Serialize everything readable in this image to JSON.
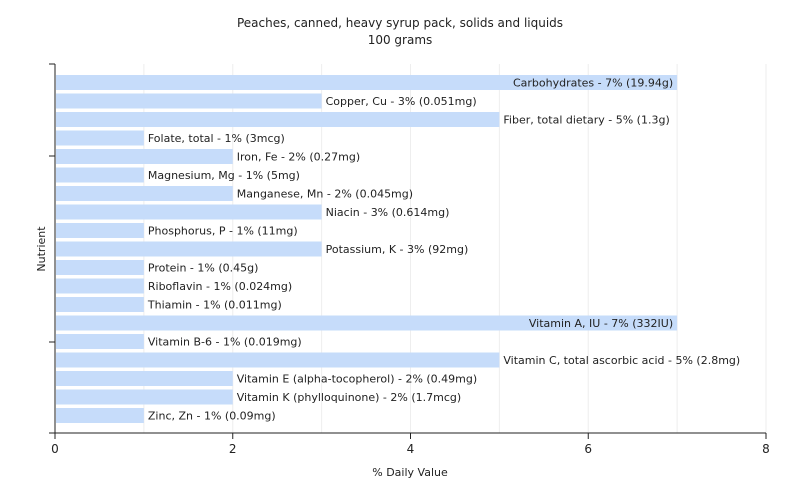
{
  "chart_data": {
    "type": "bar",
    "orientation": "horizontal",
    "title": "Peaches, canned, heavy syrup pack, solids and liquids",
    "subtitle": "100 grams",
    "xlabel": "% Daily Value",
    "ylabel": "Nutrient",
    "xlim": [
      0,
      8
    ],
    "xticks": [
      "0",
      "2",
      "4",
      "6",
      "8"
    ],
    "grid": true,
    "bar_color": "#c6dcfa",
    "categories": [
      "Carbohydrates",
      "Copper, Cu",
      "Fiber, total dietary",
      "Folate, total",
      "Iron, Fe",
      "Magnesium, Mg",
      "Manganese, Mn",
      "Niacin",
      "Phosphorus, P",
      "Potassium, K",
      "Protein",
      "Riboflavin",
      "Thiamin",
      "Vitamin A, IU",
      "Vitamin B-6",
      "Vitamin C, total ascorbic acid",
      "Vitamin E (alpha-tocopherol)",
      "Vitamin K (phylloquinone)",
      "Zinc, Zn"
    ],
    "values": [
      7,
      3,
      5,
      1,
      2,
      1,
      2,
      3,
      1,
      3,
      1,
      1,
      1,
      7,
      1,
      5,
      2,
      2,
      1
    ],
    "labels": [
      "Carbohydrates - 7% (19.94g)",
      "Copper, Cu - 3% (0.051mg)",
      "Fiber, total dietary - 5% (1.3g)",
      "Folate, total - 1% (3mcg)",
      "Iron, Fe - 2% (0.27mg)",
      "Magnesium, Mg - 1% (5mg)",
      "Manganese, Mn - 2% (0.045mg)",
      "Niacin - 3% (0.614mg)",
      "Phosphorus, P - 1% (11mg)",
      "Potassium, K - 3% (92mg)",
      "Protein - 1% (0.45g)",
      "Riboflavin - 1% (0.024mg)",
      "Thiamin - 1% (0.011mg)",
      "Vitamin A, IU - 7% (332IU)",
      "Vitamin B-6 - 1% (0.019mg)",
      "Vitamin C, total ascorbic acid - 5% (2.8mg)",
      "Vitamin E (alpha-tocopherol) - 2% (0.49mg)",
      "Vitamin K (phylloquinone) - 2% (1.7mcg)",
      "Zinc, Zn - 1% (0.09mg)"
    ]
  }
}
